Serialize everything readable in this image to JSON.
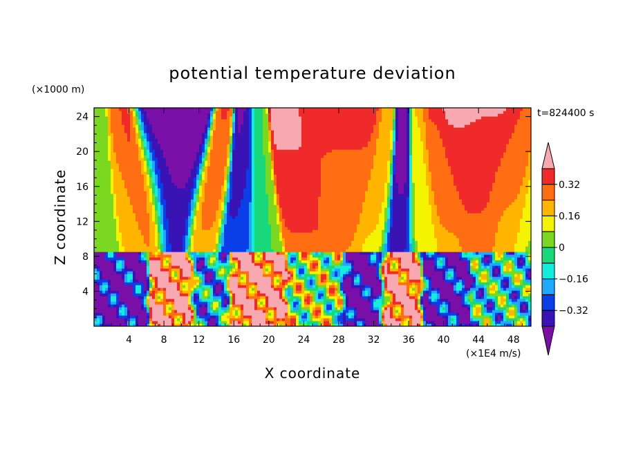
{
  "chart_data": {
    "type": "heatmap",
    "title": "potential temperature deviation",
    "xlabel": "X coordinate",
    "ylabel": "Z coordinate",
    "x_unit": "(×1E4 m/s)",
    "y_unit": "(×1000 m)",
    "time_label": "t=824400 s",
    "xlim": [
      0,
      50
    ],
    "ylim": [
      0,
      25
    ],
    "x_ticks": [
      "4",
      "8",
      "12",
      "16",
      "20",
      "24",
      "28",
      "32",
      "36",
      "40",
      "44",
      "48"
    ],
    "y_ticks": [
      "4",
      "8",
      "12",
      "16",
      "20",
      "24"
    ],
    "colorbar": {
      "levels": [
        -0.4,
        -0.32,
        -0.24,
        -0.16,
        -0.08,
        0,
        0.08,
        0.16,
        0.24,
        0.32,
        0.4
      ],
      "labels": [
        "0.32",
        "0.16",
        "0",
        "−0.16",
        "−0.32"
      ],
      "colors": [
        "#7a0fa8",
        "#3a13b4",
        "#0a3fe8",
        "#1ea8ff",
        "#14ecdc",
        "#18d87c",
        "#7ad820",
        "#f4f400",
        "#ffb400",
        "#ff6e12",
        "#f02a2a",
        "#f8a8b0"
      ]
    },
    "upper_layer_columns": [
      {
        "x": 1.5,
        "value": 0.0
      },
      {
        "x": 4.5,
        "value": 0.25
      },
      {
        "x": 6.5,
        "value": 0.33
      },
      {
        "x": 9.0,
        "value": -0.45
      },
      {
        "x": 12.5,
        "value": 0.3
      },
      {
        "x": 15.8,
        "value": -0.4
      },
      {
        "x": 17.0,
        "value": -0.34
      },
      {
        "x": 19.5,
        "value": 0.0
      },
      {
        "x": 24.0,
        "value": 0.4
      },
      {
        "x": 28.5,
        "value": 0.32
      },
      {
        "x": 31.5,
        "value": 0.2
      },
      {
        "x": 34.7,
        "value": -0.45
      },
      {
        "x": 38.0,
        "value": 0.15
      },
      {
        "x": 41.0,
        "value": 0.3
      },
      {
        "x": 44.0,
        "value": 0.38
      },
      {
        "x": 47.0,
        "value": 0.28
      },
      {
        "x": 49.5,
        "value": 0.1
      }
    ],
    "lower_layer_regions": [
      {
        "x": 3,
        "value": -0.42
      },
      {
        "x": 9.5,
        "value": 0.4
      },
      {
        "x": 13,
        "value": -0.2
      },
      {
        "x": 18,
        "value": 0.4
      },
      {
        "x": 26,
        "value": 0.05
      },
      {
        "x": 31,
        "value": -0.45
      },
      {
        "x": 35,
        "value": 0.4
      },
      {
        "x": 40,
        "value": -0.4
      },
      {
        "x": 46,
        "value": -0.1
      }
    ],
    "layer_boundary_z": 8.5
  }
}
